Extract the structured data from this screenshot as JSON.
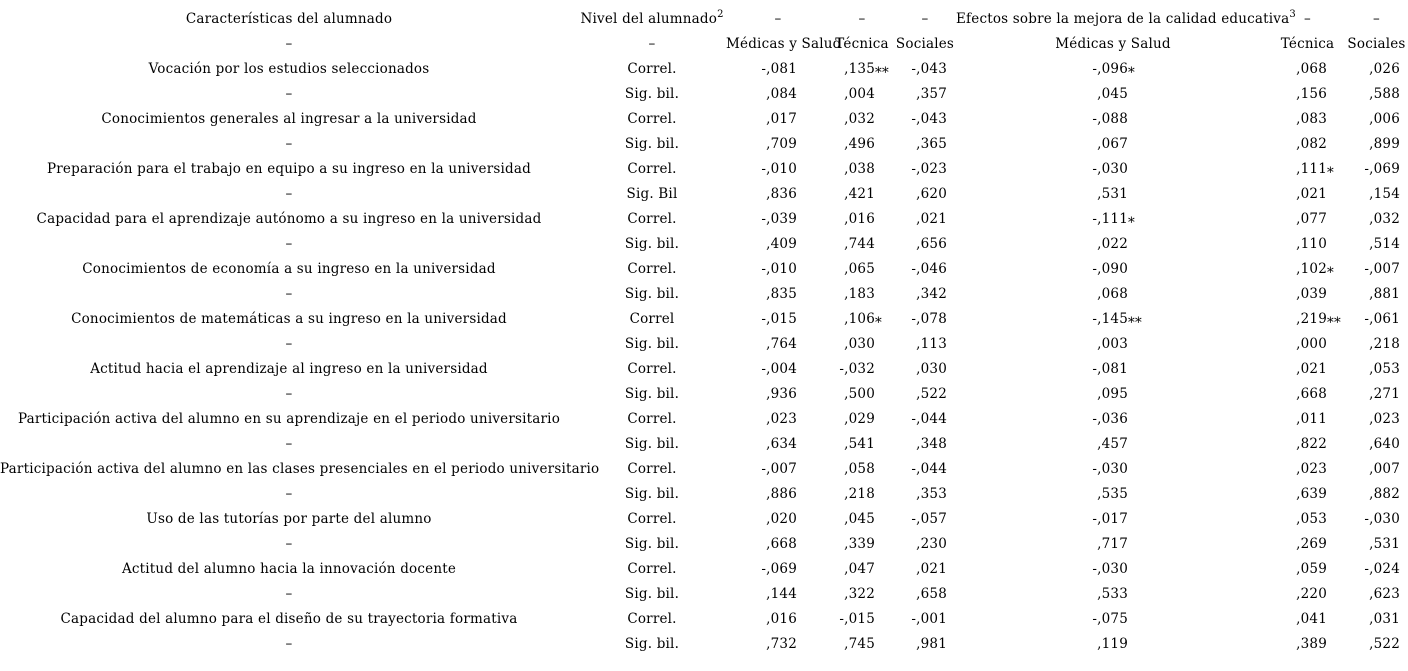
{
  "table": {
    "header": {
      "col1_title": "Características del alumnado",
      "group1_title": "Nivel del alumnado",
      "group1_sup": "2",
      "group2_title": "Efectos sobre la mejora de la calidad educativa",
      "group2_sup": "3",
      "dash": "–",
      "sub": [
        "Médicas y Salud",
        "Técnica",
        "Sociales",
        "Médicas y Salud",
        "Técnica",
        "Sociales"
      ]
    },
    "rows": [
      {
        "label": "Vocación por los estudios seleccionados",
        "stats": [
          {
            "stat": "Correl.",
            "values": [
              "-,081",
              ",135**",
              "-,043",
              "-,096*",
              ",068",
              ",026"
            ]
          },
          {
            "stat": "Sig. bil.",
            "values": [
              ",084",
              ",004",
              ",357",
              ",045",
              ",156",
              ",588"
            ]
          }
        ]
      },
      {
        "label": "Conocimientos generales al ingresar a la universidad",
        "stats": [
          {
            "stat": "Correl.",
            "values": [
              ",017",
              ",032",
              "-,043",
              "-,088",
              ",083",
              ",006"
            ]
          },
          {
            "stat": "Sig. bil.",
            "values": [
              ",709",
              ",496",
              ",365",
              ",067",
              ",082",
              ",899"
            ]
          }
        ]
      },
      {
        "label": "Preparación para el trabajo en equipo a su ingreso en la universidad",
        "stats": [
          {
            "stat": "Correl.",
            "values": [
              "-,010",
              ",038",
              "-,023",
              "-,030",
              ",111*",
              "-,069"
            ]
          },
          {
            "stat": "Sig. Bil",
            "values": [
              ",836",
              ",421",
              ",620",
              ",531",
              ",021",
              ",154"
            ]
          }
        ]
      },
      {
        "label": "Capacidad para el aprendizaje autónomo a su ingreso en la universidad",
        "stats": [
          {
            "stat": "Correl.",
            "values": [
              "-,039",
              ",016",
              ",021",
              "-,111*",
              ",077",
              ",032"
            ]
          },
          {
            "stat": "Sig. bil.",
            "values": [
              ",409",
              ",744",
              ",656",
              ",022",
              ",110",
              ",514"
            ]
          }
        ]
      },
      {
        "label": "Conocimientos de economía a su ingreso en la universidad",
        "stats": [
          {
            "stat": "Correl.",
            "values": [
              "-,010",
              ",065",
              "-,046",
              "-,090",
              ",102*",
              "-,007"
            ]
          },
          {
            "stat": "Sig. bil.",
            "values": [
              ",835",
              ",183",
              ",342",
              ",068",
              ",039",
              ",881"
            ]
          }
        ]
      },
      {
        "label": "Conocimientos de matemáticas a su ingreso en la universidad",
        "stats": [
          {
            "stat": "Correl",
            "values": [
              "-,015",
              ",106*",
              "-,078",
              "-,145**",
              ",219**",
              "-,061"
            ]
          },
          {
            "stat": "Sig. bil.",
            "values": [
              ",764",
              ",030",
              ",113",
              ",003",
              ",000",
              ",218"
            ]
          }
        ]
      },
      {
        "label": "Actitud hacia el aprendizaje al ingreso en la universidad",
        "stats": [
          {
            "stat": "Correl.",
            "values": [
              "-,004",
              "-,032",
              ",030",
              "-,081",
              ",021",
              ",053"
            ]
          },
          {
            "stat": "Sig. bil.",
            "values": [
              ",936",
              ",500",
              ",522",
              ",095",
              ",668",
              ",271"
            ]
          }
        ]
      },
      {
        "label": "Participación activa del alumno en su aprendizaje en el periodo universitario",
        "stats": [
          {
            "stat": "Correl.",
            "values": [
              ",023",
              ",029",
              "-,044",
              "-,036",
              ",011",
              ",023"
            ]
          },
          {
            "stat": "Sig. bil.",
            "values": [
              ",634",
              ",541",
              ",348",
              ",457",
              ",822",
              ",640"
            ]
          }
        ]
      },
      {
        "label": "Participación activa del alumno en las clases presenciales en el periodo universitario",
        "stats": [
          {
            "stat": "Correl.",
            "values": [
              "-,007",
              ",058",
              "-,044",
              "-,030",
              ",023",
              ",007"
            ]
          },
          {
            "stat": "Sig. bil.",
            "values": [
              ",886",
              ",218",
              ",353",
              ",535",
              ",639",
              ",882"
            ]
          }
        ]
      },
      {
        "label": "Uso de las tutorías por parte del alumno",
        "stats": [
          {
            "stat": "Correl.",
            "values": [
              ",020",
              ",045",
              "-,057",
              "-,017",
              ",053",
              "-,030"
            ]
          },
          {
            "stat": "Sig. bil.",
            "values": [
              ",668",
              ",339",
              ",230",
              ",717",
              ",269",
              ",531"
            ]
          }
        ]
      },
      {
        "label": "Actitud del alumno hacia la innovación docente",
        "stats": [
          {
            "stat": "Correl.",
            "values": [
              "-,069",
              ",047",
              ",021",
              "-,030",
              ",059",
              "-,024"
            ]
          },
          {
            "stat": "Sig. bil.",
            "values": [
              ",144",
              ",322",
              ",658",
              ",533",
              ",220",
              ",623"
            ]
          }
        ]
      },
      {
        "label": "Capacidad del alumno para el diseño de su trayectoria formativa",
        "stats": [
          {
            "stat": "Correl.",
            "values": [
              ",016",
              "-,015",
              "-,001",
              "-,075",
              ",041",
              ",031"
            ]
          },
          {
            "stat": "Sig. bil.",
            "values": [
              ",732",
              ",745",
              ",981",
              ",119",
              ",389",
              ",522"
            ]
          }
        ]
      }
    ]
  }
}
